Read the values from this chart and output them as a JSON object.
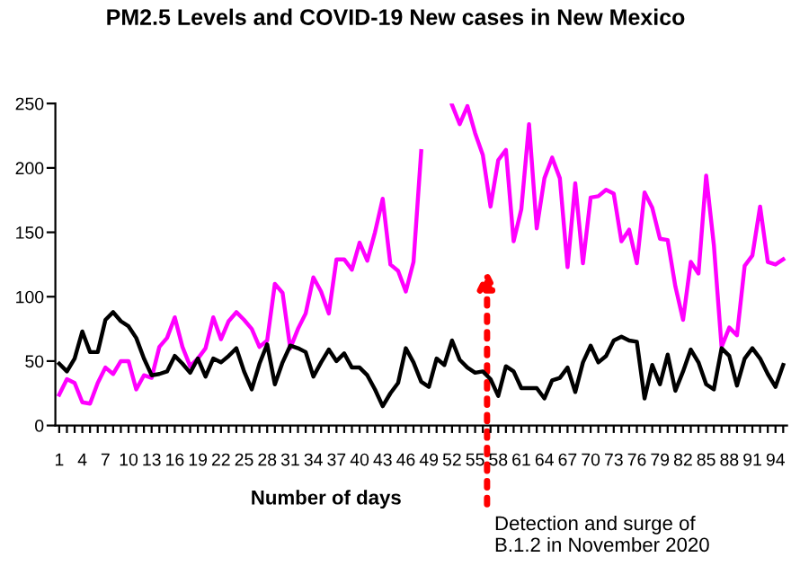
{
  "chart_data": {
    "type": "line",
    "title": "PM2.5 Levels and COVID-19 New cases in New Mexico",
    "xlabel": "Number of days",
    "categories": [
      "1",
      null,
      null,
      "4",
      null,
      null,
      "7",
      null,
      null,
      "10",
      null,
      null,
      "13",
      null,
      null,
      "16",
      null,
      null,
      "19",
      null,
      null,
      "22",
      null,
      null,
      "25",
      null,
      null,
      "28",
      null,
      null,
      "31",
      null,
      null,
      "34",
      null,
      null,
      "37",
      null,
      null,
      "40",
      null,
      null,
      "43",
      null,
      null,
      "46",
      null,
      null,
      "49",
      null,
      null,
      "52",
      null,
      null,
      "55",
      null,
      null,
      "58",
      null,
      null,
      "61",
      null,
      null,
      "64",
      null,
      null,
      "67",
      null,
      null,
      "70",
      null,
      null,
      "73",
      null,
      null,
      "76",
      null,
      null,
      "79",
      null,
      null,
      "82",
      null,
      null,
      "85",
      null,
      null,
      "88",
      null,
      null,
      "91",
      null,
      null,
      "94",
      null
    ],
    "series": [
      {
        "color": "#ff00ff",
        "values": [
          24,
          36,
          33,
          18,
          17,
          33,
          45,
          40,
          50,
          50,
          28,
          39,
          37,
          61,
          68,
          84,
          61,
          46,
          52,
          60,
          84,
          67,
          81,
          88,
          82,
          75,
          61,
          66,
          110,
          103,
          60,
          75,
          87,
          115,
          104,
          87,
          129,
          129,
          121,
          142,
          128,
          150,
          176,
          125,
          120,
          104,
          127,
          213,
          null,
          null,
          null,
          249,
          234,
          248,
          227,
          210,
          170,
          206,
          214,
          143,
          168,
          234,
          153,
          192,
          208,
          192,
          123,
          188,
          126,
          177,
          178,
          183,
          180,
          143,
          152,
          126,
          181,
          169,
          145,
          144,
          108,
          82,
          127,
          118,
          194,
          140,
          61,
          76,
          70,
          124,
          132,
          170,
          127,
          125,
          129
        ]
      },
      {
        "color": "#000000",
        "values": [
          48,
          42,
          52,
          73,
          57,
          57,
          82,
          88,
          81,
          77,
          68,
          52,
          39,
          40,
          42,
          54,
          48,
          41,
          52,
          38,
          52,
          49,
          54,
          60,
          42,
          28,
          48,
          63,
          32,
          49,
          62,
          60,
          57,
          38,
          49,
          59,
          50,
          56,
          45,
          45,
          39,
          28,
          15,
          25,
          33,
          60,
          49,
          34,
          30,
          52,
          47,
          66,
          51,
          45,
          41,
          42,
          36,
          23,
          46,
          42,
          29,
          29,
          29,
          21,
          35,
          37,
          45,
          26,
          49,
          62,
          49,
          54,
          66,
          69,
          66,
          65,
          21,
          47,
          32,
          55,
          27,
          42,
          59,
          49,
          32,
          28,
          60,
          54,
          31,
          52,
          60,
          52,
          40,
          30,
          47
        ]
      }
    ],
    "ylim": [
      0,
      250
    ],
    "yticks": [
      0,
      50,
      100,
      150,
      200,
      250
    ],
    "grid": false,
    "marker": "none",
    "line_style": "solid",
    "annotations": [
      "Detection and surge of\nB.1.2 in November 2020"
    ]
  }
}
